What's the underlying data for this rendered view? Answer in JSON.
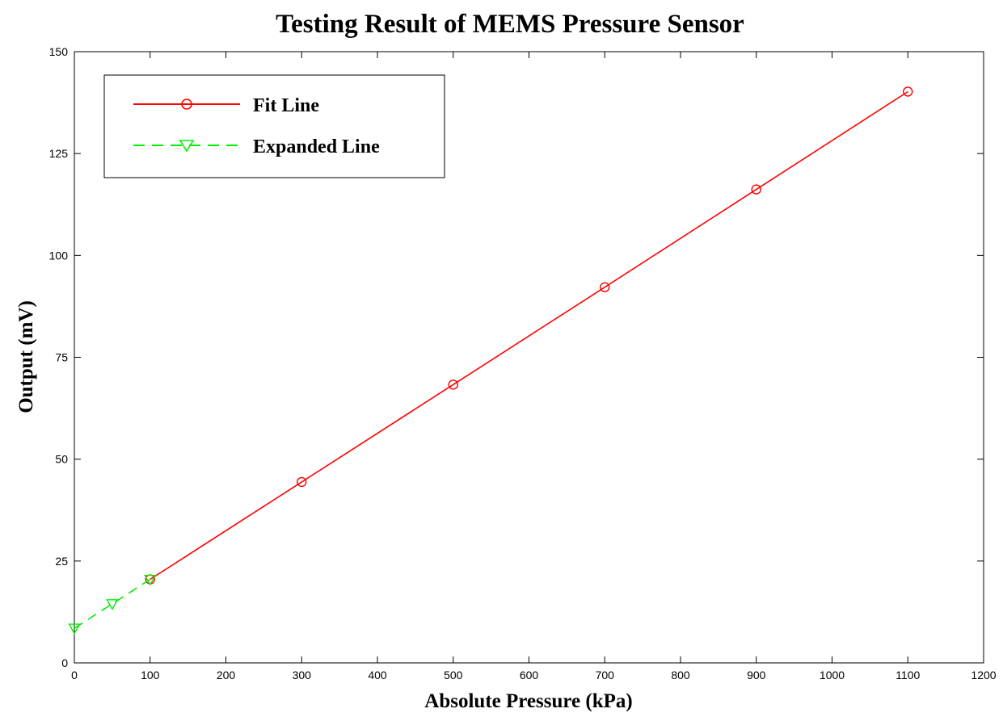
{
  "chart_data": {
    "type": "line",
    "title": "Testing Result of MEMS Pressure Sensor",
    "xlabel": "Absolute Pressure (kPa)",
    "ylabel": "Output (mV)",
    "xlim": [
      0,
      1200
    ],
    "ylim": [
      0,
      150
    ],
    "xticks": [
      0,
      100,
      200,
      300,
      400,
      500,
      600,
      700,
      800,
      900,
      1000,
      1100,
      1200
    ],
    "yticks": [
      0,
      25,
      50,
      75,
      100,
      125,
      150
    ],
    "grid": false,
    "legend_position": "top-left",
    "series": [
      {
        "name": "Fit Line",
        "color": "#ff0000",
        "line_style": "solid",
        "marker": "circle",
        "x": [
          100,
          300,
          500,
          700,
          900,
          1100
        ],
        "y": [
          20.5,
          44.4,
          68.3,
          92.2,
          116.2,
          140.2
        ]
      },
      {
        "name": "Expanded Line",
        "color": "#00ee00",
        "line_style": "dashed",
        "marker": "triangle-down",
        "x": [
          0,
          50,
          100
        ],
        "y": [
          8.5,
          14.5,
          20.5
        ]
      }
    ]
  }
}
